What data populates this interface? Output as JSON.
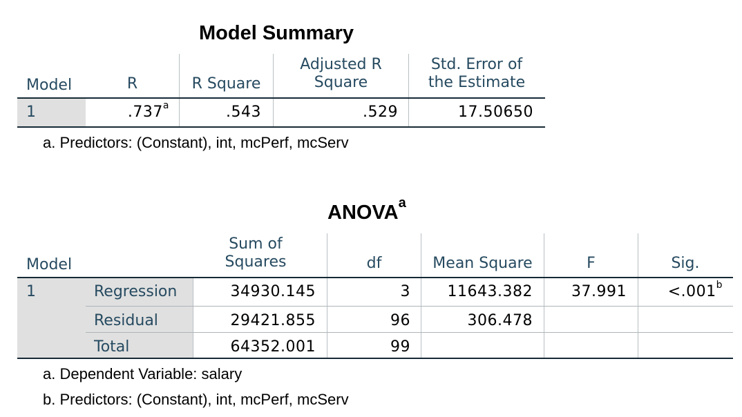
{
  "model_summary": {
    "title": "Model Summary",
    "headers": {
      "model": "Model",
      "r": "R",
      "r_square": "R Square",
      "adj_r_square_line1": "Adjusted R",
      "adj_r_square_line2": "Square",
      "std_error_line1": "Std. Error of",
      "std_error_line2": "the Estimate"
    },
    "row": {
      "model": "1",
      "r": ".737",
      "r_note": "a",
      "r_square": ".543",
      "adj_r_square": ".529",
      "std_error": "17.50650"
    },
    "footnote": "a. Predictors: (Constant), int, mcPerf, mcServ"
  },
  "anova": {
    "title": "ANOVA",
    "title_note": "a",
    "headers": {
      "model": "Model",
      "sum_sq_line1": "Sum of",
      "sum_sq_line2": "Squares",
      "df": "df",
      "mean_square": "Mean Square",
      "f": "F",
      "sig": "Sig."
    },
    "model_number": "1",
    "rows": [
      {
        "label": "Regression",
        "sum_sq": "34930.145",
        "df": "3",
        "mean_square": "11643.382",
        "f": "37.991",
        "sig": "<.001",
        "sig_note": "b"
      },
      {
        "label": "Residual",
        "sum_sq": "29421.855",
        "df": "96",
        "mean_square": "306.478",
        "f": "",
        "sig": ""
      },
      {
        "label": "Total",
        "sum_sq": "64352.001",
        "df": "99",
        "mean_square": "",
        "f": "",
        "sig": ""
      }
    ],
    "footnotes": [
      "a. Dependent Variable: salary",
      "b. Predictors: (Constant), int, mcPerf, mcServ"
    ]
  }
}
